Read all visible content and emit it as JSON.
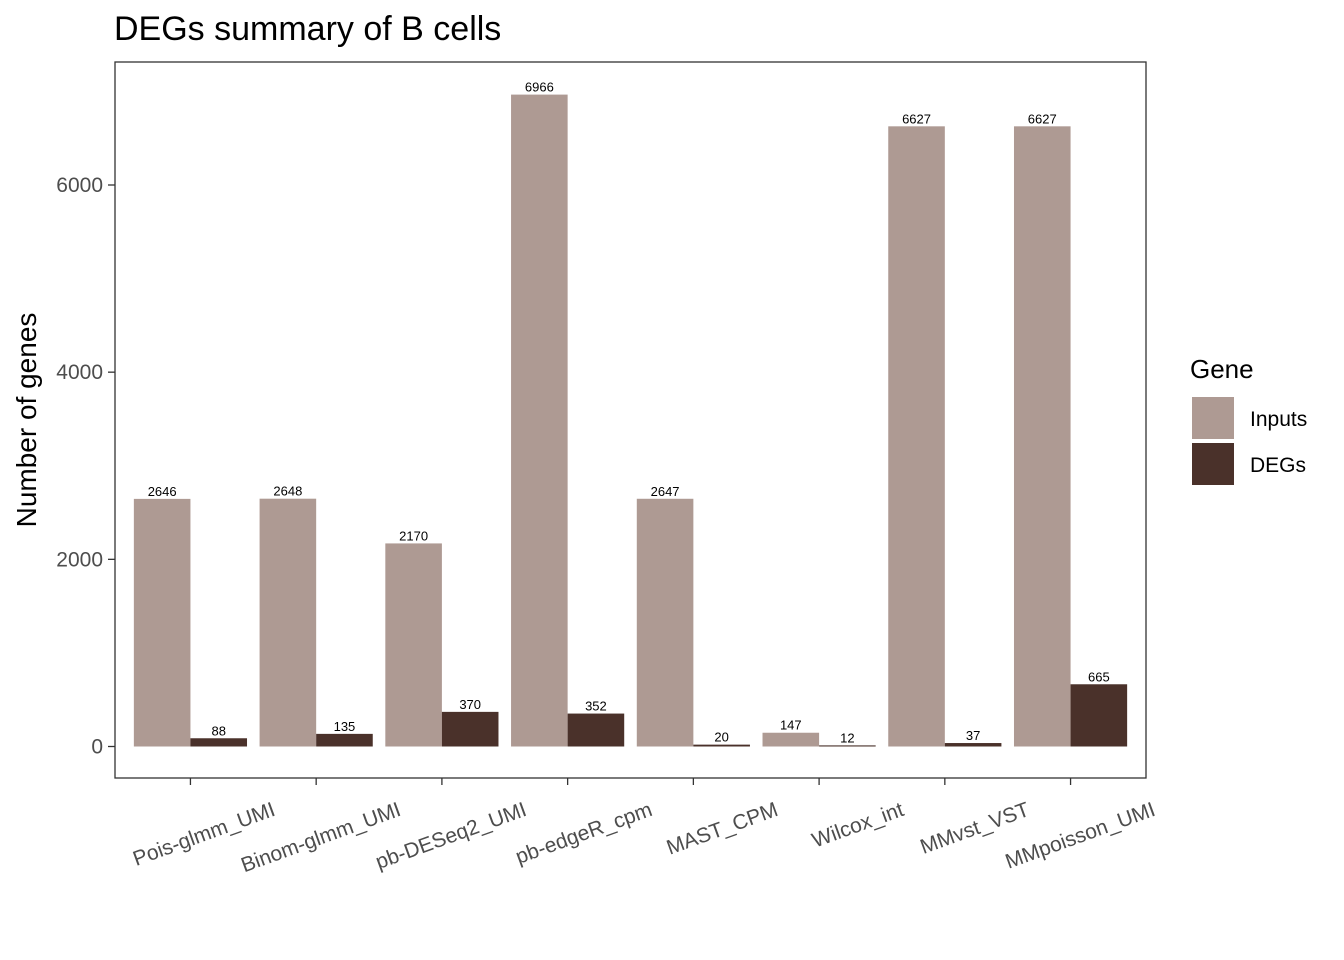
{
  "chart_data": {
    "type": "bar",
    "title": "DEGs summary of  B cells",
    "xlabel": "",
    "ylabel": "Number of genes",
    "ylim": [
      -330,
      7600
    ],
    "yticks": [
      0,
      2000,
      4000,
      6000
    ],
    "grid": false,
    "legend_position": "right",
    "categories": [
      "Pois-glmm_UMI",
      "Binom-glmm_UMI",
      "pb-DESeq2_UMI",
      "pb-edgeR_cpm",
      "MAST_CPM",
      "Wilcox_int",
      "MMvst_VST",
      "MMpoisson_UMI"
    ],
    "series": [
      {
        "name": "Inputs",
        "color": "#AE9A93",
        "values": [
          2646,
          2648,
          2170,
          6966,
          2647,
          147,
          6627,
          6627
        ]
      },
      {
        "name": "DEGs",
        "color": "#4A312A",
        "values": [
          88,
          135,
          370,
          352,
          20,
          12,
          37,
          665
        ]
      }
    ],
    "legend_title": "Gene"
  }
}
